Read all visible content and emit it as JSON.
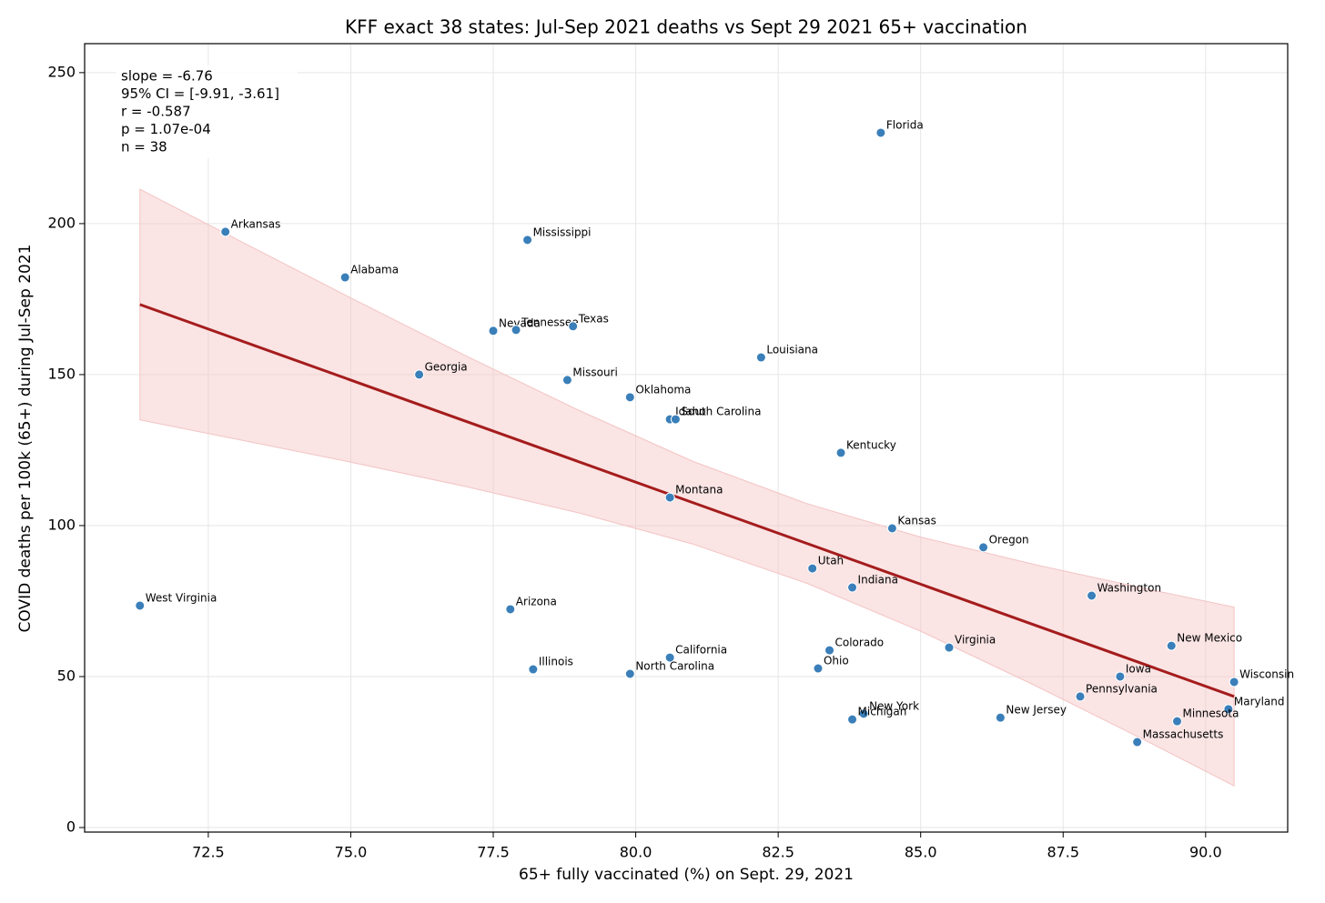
{
  "chart_data": {
    "type": "scatter",
    "title": "KFF exact 38 states: Jul-Sep 2021 deaths vs Sept 29 2021 65+ vaccination",
    "x_label": "65+ fully vaccinated (%) on Sept. 29, 2021",
    "y_label": "COVID deaths per 100k (65+) during Jul-Sep 2021",
    "annotations": [
      "slope = -6.76",
      "95% CI = [-9.91, -3.61]",
      "r = -0.587",
      "p = 1.07e-04",
      "n = 38"
    ],
    "labels": [
      "Florida",
      "Arkansas",
      "Mississippi",
      "Alabama",
      "Nevada",
      "Tennessee",
      "Texas",
      "Louisiana",
      "Georgia",
      "Missouri",
      "Oklahoma",
      "Idaho",
      "South Carolina",
      "Kentucky",
      "Montana",
      "Kansas",
      "Oregon",
      "Utah",
      "Indiana",
      "Washington",
      "West Virginia",
      "Arizona",
      "New Mexico",
      "Virginia",
      "Colorado",
      "California",
      "Ohio",
      "Illinois",
      "North Carolina",
      "Iowa",
      "Wisconsin",
      "Pennsylvania",
      "Maryland",
      "New York",
      "Michigan",
      "New Jersey",
      "Minnesota",
      "Massachusetts"
    ],
    "x": [
      84.3,
      72.8,
      78.1,
      74.9,
      77.5,
      77.9,
      78.9,
      82.2,
      76.2,
      78.8,
      79.9,
      80.6,
      80.7,
      83.6,
      80.6,
      84.5,
      86.1,
      83.1,
      83.8,
      88.0,
      71.3,
      77.8,
      89.4,
      85.5,
      83.4,
      80.6,
      83.2,
      78.2,
      79.9,
      88.5,
      90.5,
      87.8,
      90.4,
      84.0,
      83.8,
      86.4,
      89.5,
      88.8
    ],
    "y": [
      230.1,
      197.3,
      194.6,
      182.2,
      164.5,
      164.8,
      166.0,
      155.7,
      150.0,
      148.2,
      142.5,
      135.2,
      135.2,
      124.1,
      109.3,
      99.1,
      92.8,
      85.8,
      79.5,
      76.8,
      73.5,
      72.3,
      60.2,
      59.6,
      58.7,
      56.3,
      52.7,
      52.4,
      50.9,
      50.0,
      48.2,
      43.4,
      39.2,
      37.7,
      35.8,
      36.4,
      35.2,
      28.3
    ],
    "point_color": "#3a7fb9",
    "fit_x": [
      71.3,
      90.5
    ],
    "fit_y": [
      173.2,
      43.4
    ],
    "fit_color": "#a51c1c",
    "band_x": [
      71.3,
      73,
      75,
      77,
      79,
      81,
      83,
      85,
      87,
      89,
      90.5
    ],
    "band_upper": [
      211.4,
      194.8,
      175.4,
      156.4,
      138.2,
      121.3,
      107.3,
      96.2,
      87.1,
      78.9,
      73.0
    ],
    "band_lower": [
      135.0,
      128.6,
      121.0,
      113.0,
      104.2,
      93.9,
      80.9,
      65.0,
      47.1,
      28.3,
      13.8
    ],
    "band_color": "#f4c4c4",
    "xlim": [
      70.33,
      91.44
    ],
    "ylim": [
      -1.5,
      259.6
    ],
    "xticks": [
      72.5,
      {
        "value": 75,
        "label": "75.0"
      },
      77.5,
      {
        "value": 80,
        "label": "80.0"
      },
      82.5,
      {
        "value": 85,
        "label": "85.0"
      },
      87.5,
      {
        "value": 90,
        "label": "90.0"
      }
    ],
    "yticks": [
      0,
      50,
      100,
      150,
      200,
      250
    ],
    "grid": true
  }
}
